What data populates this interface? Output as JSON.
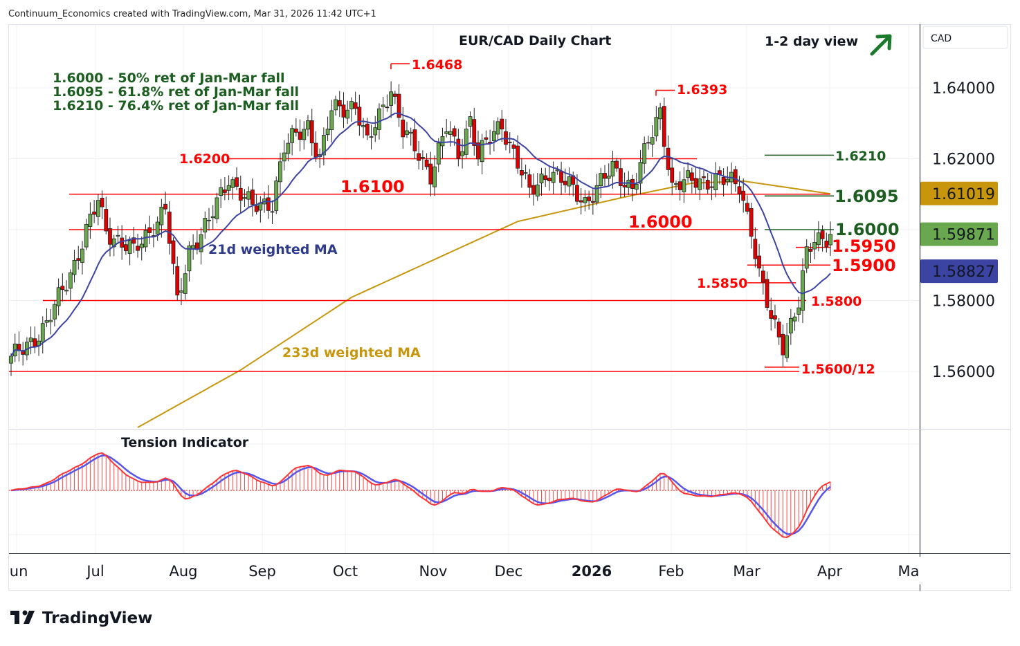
{
  "header": {
    "attribution": "Continuum_Economics created with TradingView.com, Mar 31, 2026 11:42 UTC+1"
  },
  "chart_data": {
    "type": "candlestick",
    "title": "EUR/CAD Daily Chart",
    "view": "1-2 day view",
    "view_direction_icon": "arrow-up-right-icon",
    "currency": "CAD",
    "ylim": [
      1.545,
      1.652
    ],
    "y_ticks": [
      "1.64000",
      "1.62000",
      "1.58000",
      "1.56000"
    ],
    "y_tick_values": [
      1.64,
      1.62,
      1.58,
      1.56
    ],
    "x_ticks": [
      "Jun",
      "Jul",
      "Aug",
      "Sep",
      "Oct",
      "Nov",
      "Dec",
      "2026",
      "Feb",
      "Mar",
      "Apr",
      "Ma"
    ],
    "close_keypoints": [
      [
        0,
        1.5633
      ],
      [
        9,
        1.573
      ],
      [
        16,
        1.5906
      ],
      [
        22,
        1.608
      ],
      [
        24,
        1.6
      ],
      [
        31,
        1.5935
      ],
      [
        39,
        1.606
      ],
      [
        42,
        1.579
      ],
      [
        45,
        1.5945
      ],
      [
        50,
        1.602
      ],
      [
        55,
        1.615
      ],
      [
        61,
        1.606
      ],
      [
        66,
        1.608
      ],
      [
        69,
        1.623
      ],
      [
        75,
        1.6297
      ],
      [
        78,
        1.62
      ],
      [
        81,
        1.6335
      ],
      [
        87,
        1.6355
      ],
      [
        90,
        1.6238
      ],
      [
        96,
        1.6404
      ],
      [
        99,
        1.6277
      ],
      [
        106,
        1.616
      ],
      [
        110,
        1.6287
      ],
      [
        113,
        1.6209
      ],
      [
        116,
        1.6316
      ],
      [
        118,
        1.621
      ],
      [
        124,
        1.6297
      ],
      [
        127,
        1.622
      ],
      [
        131,
        1.61
      ],
      [
        136,
        1.617
      ],
      [
        145,
        1.608
      ],
      [
        152,
        1.617
      ],
      [
        157,
        1.612
      ],
      [
        160,
        1.621
      ],
      [
        164,
        1.6335
      ],
      [
        167,
        1.612
      ],
      [
        173,
        1.614
      ],
      [
        178,
        1.614
      ],
      [
        184,
        1.613
      ],
      [
        187,
        1.6
      ],
      [
        189,
        1.5867
      ],
      [
        192,
        1.575
      ],
      [
        195,
        1.568
      ],
      [
        199,
        1.579
      ],
      [
        201,
        1.5926
      ],
      [
        203,
        1.5975
      ],
      [
        207,
        1.5987
      ]
    ],
    "ma233_keypoints": [
      [
        32,
        1.5442
      ],
      [
        58,
        1.5604
      ],
      [
        86,
        1.5809
      ],
      [
        128,
        1.6023
      ],
      [
        155,
        1.6092
      ],
      [
        172,
        1.6131
      ],
      [
        185,
        1.6137
      ],
      [
        207,
        1.6101
      ]
    ],
    "price_badges": [
      {
        "label": "1.61019",
        "value": 1.61019,
        "color": "#c8960c",
        "series": "233d weighted MA"
      },
      {
        "label": "1.59871",
        "value": 1.59871,
        "color": "#6aa84f",
        "series": "last price"
      },
      {
        "label": "1.58827",
        "value": 1.58827,
        "color": "#3b44a3",
        "series": "21d weighted MA"
      }
    ],
    "series_labels": {
      "ma21": "21d weighted MA",
      "ma233": "233d weighted MA",
      "indicator": "Tension Indicator"
    },
    "colors": {
      "up": "#6aa84f",
      "down": "#e00000",
      "ma21": "#3b44a3",
      "ma233": "#c8960c",
      "level": "#ff0000",
      "target": "#1b5e20"
    },
    "notes": [
      "1.6000 - 50% ret of Jan-Mar fall",
      "1.6095 - 61.8% ret of Jan-Mar fall",
      "1.6210 - 76.4% ret of Jan-Mar fall"
    ],
    "levels": {
      "l6200": {
        "label": "1.6200",
        "value": 1.62
      },
      "l6100": {
        "label": "1.6100",
        "value": 1.61
      },
      "l6000": {
        "label": "1.6000",
        "value": 1.6
      },
      "l5850": {
        "label": "1.5850",
        "value": 1.585
      },
      "l5800": {
        "label": "1.5800",
        "value": 1.58
      },
      "l5600": {
        "label": "1.5600/12",
        "value": 1.56
      },
      "l5950": {
        "label": "1.5950",
        "value": 1.595
      },
      "l5900": {
        "label": "1.5900",
        "value": 1.59
      },
      "t6210": {
        "label": "1.6210",
        "value": 1.621
      },
      "t6095": {
        "label": "1.6095",
        "value": 1.6095
      },
      "t6000": {
        "label": "1.6000",
        "value": 1.6
      },
      "h6468": {
        "label": "1.6468",
        "value": 1.6468
      },
      "h6393": {
        "label": "1.6393",
        "value": 1.6393
      }
    }
  },
  "footer": {
    "brand": "TradingView"
  }
}
